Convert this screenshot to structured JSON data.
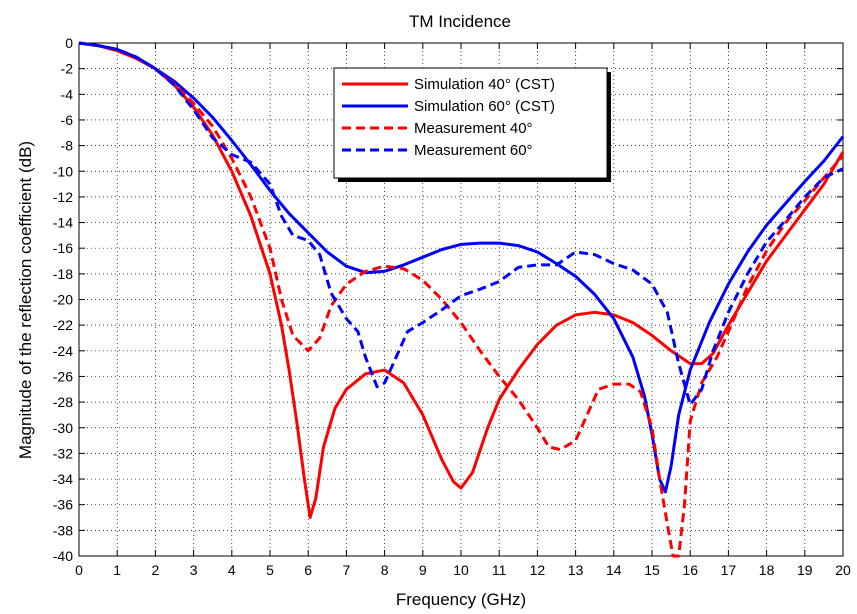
{
  "chart_data": {
    "type": "line",
    "title": "TM Incidence",
    "xlabel": "Frequency (GHz)",
    "ylabel": "Magnitude of the reflection coefficient (dB)",
    "xlim": [
      0,
      20
    ],
    "ylim": [
      -40,
      0
    ],
    "xticks": [
      0,
      1,
      2,
      3,
      4,
      5,
      6,
      7,
      8,
      9,
      10,
      11,
      12,
      13,
      14,
      15,
      16,
      17,
      18,
      19,
      20
    ],
    "yticks": [
      0,
      -2,
      -4,
      -6,
      -8,
      -10,
      -12,
      -14,
      -16,
      -18,
      -20,
      -22,
      -24,
      -26,
      -28,
      -30,
      -32,
      -34,
      -36,
      -38,
      -40
    ],
    "grid": "dotted",
    "legend_position": "top-right-inside",
    "series": [
      {
        "name": "Simulation 40° (CST)",
        "color": "#ff0000",
        "dash": "solid",
        "points": [
          [
            0,
            0
          ],
          [
            0.5,
            -0.2
          ],
          [
            1,
            -0.6
          ],
          [
            1.5,
            -1.2
          ],
          [
            2,
            -2.0
          ],
          [
            2.5,
            -3.3
          ],
          [
            3,
            -5.0
          ],
          [
            3.5,
            -7.2
          ],
          [
            4,
            -10.0
          ],
          [
            4.5,
            -13.5
          ],
          [
            5,
            -18.0
          ],
          [
            5.3,
            -22.0
          ],
          [
            5.5,
            -25.5
          ],
          [
            5.7,
            -29.5
          ],
          [
            5.9,
            -34.0
          ],
          [
            6.05,
            -37.0
          ],
          [
            6.2,
            -35.5
          ],
          [
            6.4,
            -31.5
          ],
          [
            6.7,
            -28.5
          ],
          [
            7,
            -27.0
          ],
          [
            7.5,
            -25.8
          ],
          [
            8,
            -25.5
          ],
          [
            8.5,
            -26.5
          ],
          [
            9,
            -29.0
          ],
          [
            9.5,
            -32.5
          ],
          [
            9.8,
            -34.2
          ],
          [
            10,
            -34.7
          ],
          [
            10.3,
            -33.5
          ],
          [
            10.7,
            -30.0
          ],
          [
            11,
            -27.8
          ],
          [
            11.5,
            -25.5
          ],
          [
            12,
            -23.5
          ],
          [
            12.5,
            -22.0
          ],
          [
            13,
            -21.2
          ],
          [
            13.5,
            -21.0
          ],
          [
            14,
            -21.2
          ],
          [
            14.5,
            -21.8
          ],
          [
            15,
            -22.8
          ],
          [
            15.5,
            -24.0
          ],
          [
            16,
            -25.0
          ],
          [
            16.3,
            -25.0
          ],
          [
            16.6,
            -24.2
          ],
          [
            17,
            -22.0
          ],
          [
            17.5,
            -19.5
          ],
          [
            18,
            -17.0
          ],
          [
            18.5,
            -15.0
          ],
          [
            19,
            -13.0
          ],
          [
            19.5,
            -11.0
          ],
          [
            20,
            -8.5
          ]
        ]
      },
      {
        "name": "Simulation 60° (CST)",
        "color": "#0000ff",
        "dash": "solid",
        "points": [
          [
            0,
            0
          ],
          [
            0.5,
            -0.2
          ],
          [
            1,
            -0.5
          ],
          [
            1.5,
            -1.1
          ],
          [
            2,
            -2.0
          ],
          [
            2.5,
            -3.0
          ],
          [
            3,
            -4.3
          ],
          [
            3.5,
            -5.8
          ],
          [
            4,
            -7.6
          ],
          [
            4.5,
            -9.5
          ],
          [
            5,
            -11.5
          ],
          [
            5.5,
            -13.3
          ],
          [
            6,
            -14.8
          ],
          [
            6.5,
            -16.3
          ],
          [
            7,
            -17.4
          ],
          [
            7.5,
            -17.9
          ],
          [
            8,
            -17.8
          ],
          [
            8.5,
            -17.3
          ],
          [
            9,
            -16.7
          ],
          [
            9.5,
            -16.1
          ],
          [
            10,
            -15.7
          ],
          [
            10.5,
            -15.6
          ],
          [
            11,
            -15.6
          ],
          [
            11.5,
            -15.8
          ],
          [
            12,
            -16.3
          ],
          [
            12.5,
            -17.2
          ],
          [
            13,
            -18.2
          ],
          [
            13.5,
            -19.6
          ],
          [
            14,
            -21.5
          ],
          [
            14.5,
            -24.5
          ],
          [
            14.8,
            -27.5
          ],
          [
            15,
            -30.5
          ],
          [
            15.2,
            -34.0
          ],
          [
            15.35,
            -35.0
          ],
          [
            15.5,
            -33.0
          ],
          [
            15.7,
            -29.0
          ],
          [
            16,
            -25.5
          ],
          [
            16.5,
            -21.8
          ],
          [
            17,
            -18.8
          ],
          [
            17.5,
            -16.3
          ],
          [
            18,
            -14.2
          ],
          [
            18.5,
            -12.5
          ],
          [
            19,
            -10.8
          ],
          [
            19.5,
            -9.2
          ],
          [
            20,
            -7.3
          ]
        ]
      },
      {
        "name": "Measurement 40°",
        "color": "#ff0000",
        "dash": "dashed",
        "points": [
          [
            0,
            0
          ],
          [
            0.5,
            -0.2
          ],
          [
            1,
            -0.6
          ],
          [
            1.5,
            -1.2
          ],
          [
            2,
            -2.0
          ],
          [
            2.5,
            -3.2
          ],
          [
            3,
            -4.7
          ],
          [
            3.5,
            -6.5
          ],
          [
            4,
            -9.0
          ],
          [
            4.5,
            -12.0
          ],
          [
            5,
            -16.0
          ],
          [
            5.3,
            -20.0
          ],
          [
            5.6,
            -22.8
          ],
          [
            6,
            -24.0
          ],
          [
            6.3,
            -23.0
          ],
          [
            6.6,
            -20.5
          ],
          [
            7,
            -18.8
          ],
          [
            7.5,
            -17.8
          ],
          [
            8,
            -17.4
          ],
          [
            8.5,
            -17.6
          ],
          [
            9,
            -18.5
          ],
          [
            9.5,
            -20.0
          ],
          [
            10,
            -21.8
          ],
          [
            10.5,
            -24.0
          ],
          [
            11,
            -26.0
          ],
          [
            11.5,
            -27.8
          ],
          [
            12,
            -30.0
          ],
          [
            12.3,
            -31.5
          ],
          [
            12.6,
            -31.7
          ],
          [
            13,
            -31.0
          ],
          [
            13.3,
            -29.0
          ],
          [
            13.6,
            -27.0
          ],
          [
            14,
            -26.6
          ],
          [
            14.4,
            -26.6
          ],
          [
            14.7,
            -27.2
          ],
          [
            15,
            -30.0
          ],
          [
            15.2,
            -34.0
          ],
          [
            15.4,
            -37.5
          ],
          [
            15.55,
            -40.0
          ],
          [
            15.7,
            -40.0
          ],
          [
            15.85,
            -36.0
          ],
          [
            16,
            -29.5
          ],
          [
            16.3,
            -26.5
          ],
          [
            16.7,
            -24.5
          ],
          [
            17,
            -22.5
          ],
          [
            17.5,
            -19.0
          ],
          [
            18,
            -16.2
          ],
          [
            18.5,
            -14.0
          ],
          [
            19,
            -12.3
          ],
          [
            19.5,
            -10.5
          ],
          [
            20,
            -8.8
          ]
        ]
      },
      {
        "name": "Measurement 60°",
        "color": "#0000ff",
        "dash": "dashed",
        "points": [
          [
            0,
            0
          ],
          [
            0.5,
            -0.2
          ],
          [
            1,
            -0.5
          ],
          [
            1.5,
            -1.1
          ],
          [
            2,
            -2.0
          ],
          [
            2.5,
            -3.3
          ],
          [
            3,
            -5.2
          ],
          [
            3.5,
            -7.4
          ],
          [
            4,
            -8.7
          ],
          [
            4.5,
            -9.3
          ],
          [
            5,
            -11.0
          ],
          [
            5.3,
            -13.5
          ],
          [
            5.6,
            -15.0
          ],
          [
            6,
            -15.4
          ],
          [
            6.3,
            -16.5
          ],
          [
            6.6,
            -19.5
          ],
          [
            7,
            -21.5
          ],
          [
            7.3,
            -22.5
          ],
          [
            7.5,
            -24.5
          ],
          [
            7.8,
            -26.8
          ],
          [
            8,
            -26.5
          ],
          [
            8.3,
            -24.5
          ],
          [
            8.6,
            -22.5
          ],
          [
            9,
            -21.8
          ],
          [
            9.5,
            -20.8
          ],
          [
            10,
            -19.7
          ],
          [
            10.5,
            -19.2
          ],
          [
            11,
            -18.6
          ],
          [
            11.5,
            -17.5
          ],
          [
            12,
            -17.3
          ],
          [
            12.5,
            -17.3
          ],
          [
            13,
            -16.3
          ],
          [
            13.5,
            -16.5
          ],
          [
            14,
            -17.2
          ],
          [
            14.5,
            -17.7
          ],
          [
            15,
            -18.8
          ],
          [
            15.4,
            -21.0
          ],
          [
            15.7,
            -25.0
          ],
          [
            16,
            -28.2
          ],
          [
            16.3,
            -27.0
          ],
          [
            16.6,
            -24.0
          ],
          [
            17,
            -21.0
          ],
          [
            17.5,
            -18.0
          ],
          [
            18,
            -15.5
          ],
          [
            18.5,
            -13.8
          ],
          [
            19,
            -12.0
          ],
          [
            19.5,
            -10.5
          ],
          [
            20,
            -9.8
          ]
        ]
      }
    ]
  }
}
